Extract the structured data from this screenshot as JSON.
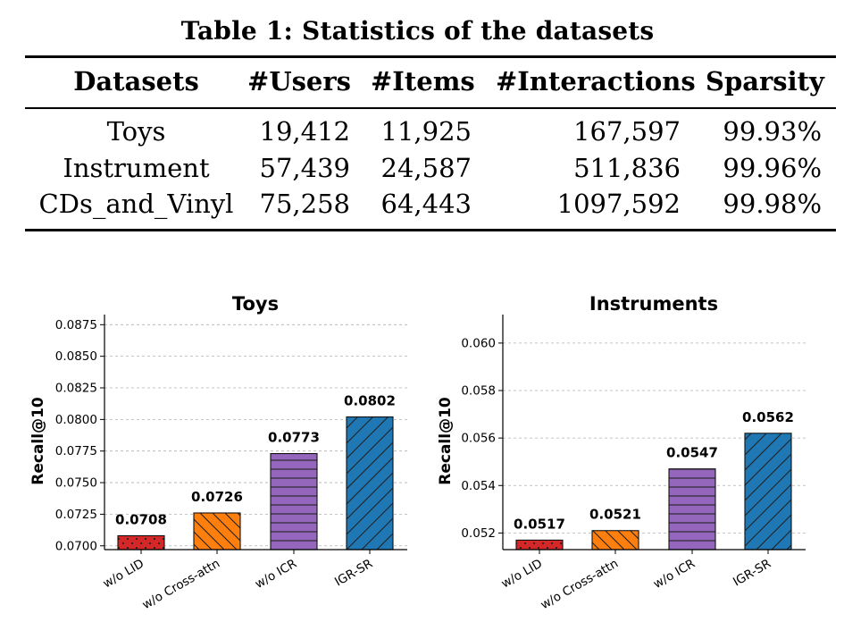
{
  "table": {
    "caption": "Table 1: Statistics of the datasets",
    "headers": [
      "Datasets",
      "#Users",
      "#Items",
      "#Interactions",
      "Sparsity"
    ],
    "rows": [
      [
        "Toys",
        "19,412",
        "11,925",
        "167,597",
        "99.93%"
      ],
      [
        "Instrument",
        "57,439",
        "24,587",
        "511,836",
        "99.96%"
      ],
      [
        "CDs_and_Vinyl",
        "75,258",
        "64,443",
        "1097,592",
        "99.98%"
      ]
    ]
  },
  "chart_data": [
    {
      "type": "bar",
      "title": "Toys",
      "ylabel": "Recall@10",
      "xlabel": "",
      "categories": [
        "w/o LID",
        "w/o Cross-attn",
        "w/o ICR",
        "IGR-SR"
      ],
      "values": [
        0.0708,
        0.0726,
        0.0773,
        0.0802
      ],
      "value_labels": [
        "0.0708",
        "0.0726",
        "0.0773",
        "0.0802"
      ],
      "ylim": [
        0.0697,
        0.0883
      ],
      "yticks": [
        0.07,
        0.0725,
        0.075,
        0.0775,
        0.08,
        0.0825,
        0.085,
        0.0875
      ],
      "ytick_labels": [
        "0.0700",
        "0.0725",
        "0.0750",
        "0.0775",
        "0.0800",
        "0.0825",
        "0.0850",
        "0.0875"
      ],
      "grid": true,
      "colors": [
        "#d62728",
        "#ff7f0e",
        "#9467bd",
        "#1f77b4"
      ],
      "hatches": [
        "dots",
        "backslash",
        "horizontal",
        "slash"
      ]
    },
    {
      "type": "bar",
      "title": "Instruments",
      "ylabel": "Recall@10",
      "xlabel": "",
      "categories": [
        "w/o LID",
        "w/o Cross-attn",
        "w/o ICR",
        "IGR-SR"
      ],
      "values": [
        0.0517,
        0.0521,
        0.0547,
        0.0562
      ],
      "value_labels": [
        "0.0517",
        "0.0521",
        "0.0547",
        "0.0562"
      ],
      "ylim": [
        0.0513,
        0.0612
      ],
      "yticks": [
        0.052,
        0.054,
        0.056,
        0.058,
        0.06
      ],
      "ytick_labels": [
        "0.052",
        "0.054",
        "0.056",
        "0.058",
        "0.060"
      ],
      "grid": true,
      "colors": [
        "#d62728",
        "#ff7f0e",
        "#9467bd",
        "#1f77b4"
      ],
      "hatches": [
        "dots",
        "backslash",
        "horizontal",
        "slash"
      ]
    }
  ]
}
